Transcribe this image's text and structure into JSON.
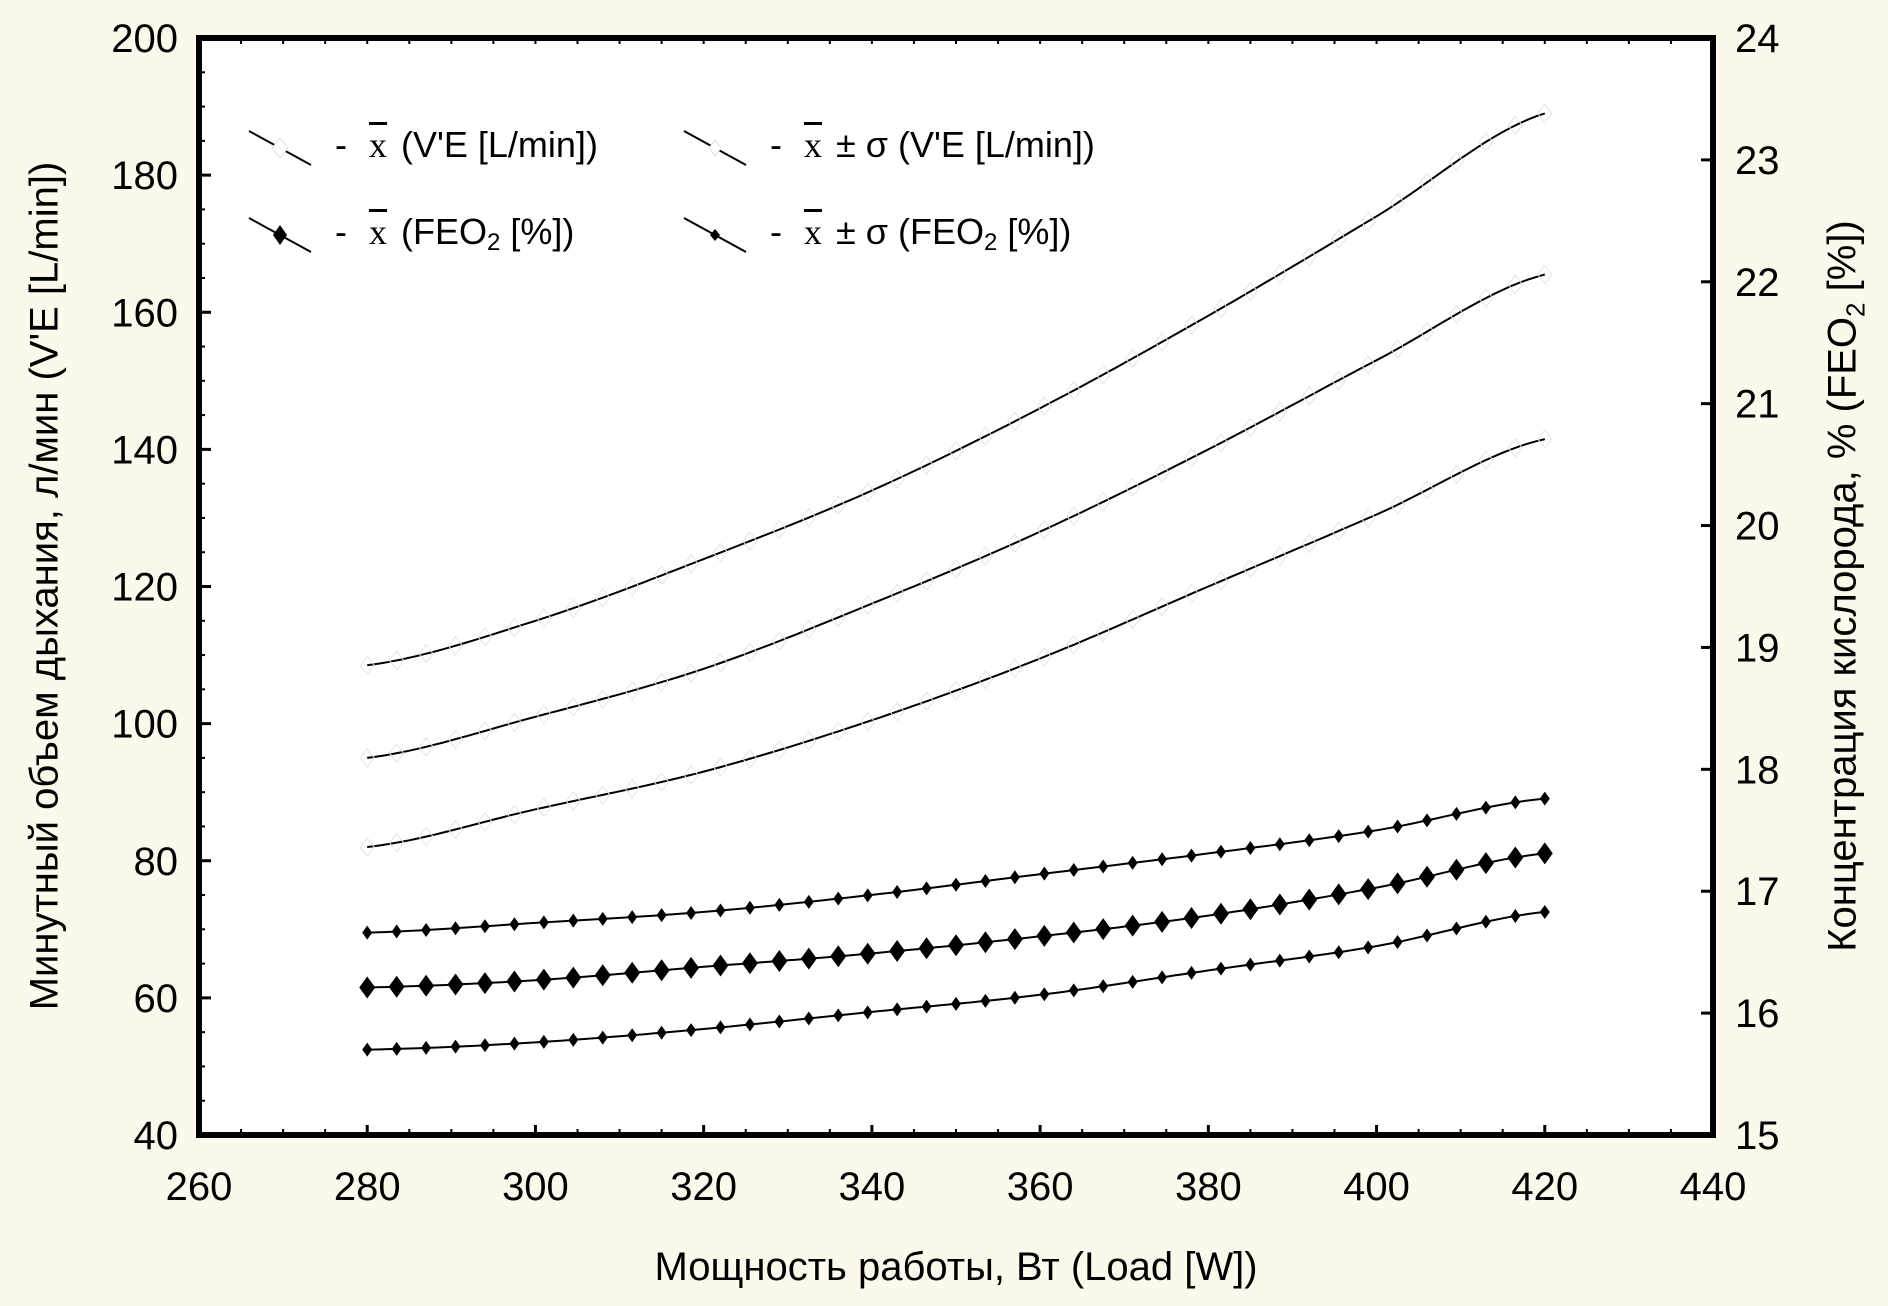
{
  "chart_data": {
    "type": "line",
    "xlabel": "Мощность работы, Вт (Load [W])",
    "ylabel": "Минутный объем дыхания, л/мин (V'E [L/min])",
    "ylabel_right_main": "Концентрация кислорода, % (FEO",
    "ylabel_right_sub": "2",
    "ylabel_right_end": " [%])",
    "xlim": [
      260,
      440
    ],
    "ylim": [
      40,
      200
    ],
    "ylim_right": [
      15,
      24
    ],
    "xticks": [
      "260",
      "280",
      "300",
      "320",
      "340",
      "360",
      "380",
      "400",
      "420",
      "440"
    ],
    "yticks": [
      "40",
      "60",
      "80",
      "100",
      "120",
      "140",
      "160",
      "180",
      "200"
    ],
    "yticks_right": [
      "15",
      "16",
      "17",
      "18",
      "19",
      "20",
      "21",
      "22",
      "23",
      "24"
    ],
    "grid": false,
    "legend_position": "top-left",
    "marker_step": 3.5,
    "x": [
      280,
      300,
      320,
      340,
      360,
      380,
      400,
      420
    ],
    "series": [
      {
        "name": "x̄ ± σ (V'E [L/min]) upper",
        "axis": "left",
        "marker": "open-diamond",
        "values": [
          108.5,
          115,
          124,
          134,
          146,
          159.5,
          174,
          189
        ]
      },
      {
        "name": "x̄ (V'E [L/min])",
        "axis": "left",
        "marker": "open-diamond",
        "values": [
          95,
          101,
          108,
          117.5,
          128,
          140,
          153,
          165.5
        ]
      },
      {
        "name": "x̄ ± σ (V'E [L/min]) lower",
        "axis": "left",
        "marker": "open-diamond",
        "values": [
          82,
          87.5,
          93,
          100.5,
          109.5,
          120,
          130.5,
          141.5
        ]
      },
      {
        "name": "x̄ ± σ (FEO2 [%]) upper",
        "axis": "right",
        "marker": "small-diamond",
        "values": [
          16.66,
          16.74,
          16.83,
          16.97,
          17.14,
          17.31,
          17.5,
          17.76
        ]
      },
      {
        "name": "x̄ (FEO2 [%])",
        "axis": "right",
        "marker": "large-diamond",
        "values": [
          16.21,
          16.27,
          16.38,
          16.49,
          16.63,
          16.8,
          17.03,
          17.31
        ]
      },
      {
        "name": "x̄ ± σ (FEO2 [%]) lower",
        "axis": "right",
        "marker": "small-diamond",
        "values": [
          15.7,
          15.76,
          15.87,
          16.01,
          16.15,
          16.35,
          16.55,
          16.83
        ]
      }
    ],
    "legend": [
      {
        "dash": "-",
        "xbar": "x",
        "pm": "",
        "label": "(V'E [L/min])",
        "sub": "",
        "end": ""
      },
      {
        "dash": "-",
        "xbar": "x",
        "pm": "± σ ",
        "label": "(V'E [L/min])",
        "sub": "",
        "end": ""
      },
      {
        "dash": "-",
        "xbar": "x",
        "pm": "",
        "label": "(FEO",
        "sub": "2",
        "end": " [%])"
      },
      {
        "dash": "-",
        "xbar": "x",
        "pm": "± σ ",
        "label": "(FEO",
        "sub": "2",
        "end": " [%])"
      }
    ]
  }
}
